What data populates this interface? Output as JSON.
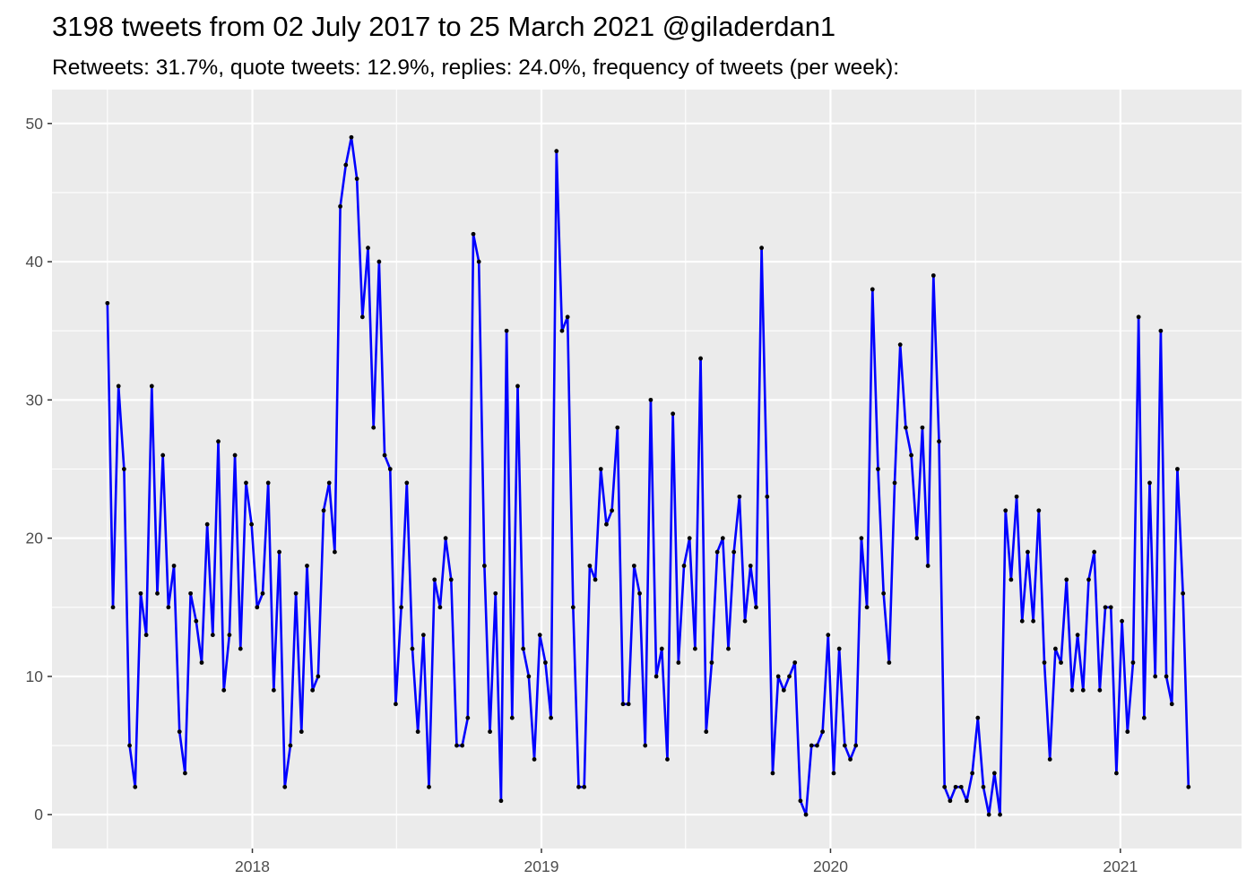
{
  "chart_data": {
    "type": "line",
    "title": "3198 tweets from 02 July 2017 to 25 March 2021 @giladerdan1",
    "subtitle": "Retweets: 31.7%, quote tweets: 12.9%, replies: 24.0%, frequency of tweets (per week):",
    "xlabel": "",
    "ylabel": "",
    "x_axis": {
      "type": "date",
      "interval": "week",
      "from": "2017-07-02",
      "to": "2021-03-25",
      "xlim": [
        "2017-04-23",
        "2021-06-03"
      ]
    },
    "x_ticks": [
      {
        "date": "2018-01-01",
        "label": "2018"
      },
      {
        "date": "2019-01-01",
        "label": "2019"
      },
      {
        "date": "2020-01-01",
        "label": "2020"
      },
      {
        "date": "2021-01-01",
        "label": "2021"
      }
    ],
    "y_ticks": [
      {
        "value": 0,
        "label": "0"
      },
      {
        "value": 10,
        "label": "10"
      },
      {
        "value": 20,
        "label": "20"
      },
      {
        "value": 30,
        "label": "30"
      },
      {
        "value": 40,
        "label": "40"
      },
      {
        "value": 50,
        "label": "50"
      }
    ],
    "ylim": [
      -2.45,
      52.45
    ],
    "grid": true,
    "colors": {
      "line": "#0000ff",
      "points": "#000000",
      "panel": "#ebebeb",
      "grid": "#ffffff"
    },
    "values": [
      37,
      15,
      31,
      25,
      5,
      2,
      16,
      13,
      31,
      16,
      26,
      15,
      18,
      6,
      3,
      16,
      14,
      11,
      21,
      13,
      27,
      9,
      13,
      26,
      12,
      24,
      21,
      15,
      16,
      24,
      9,
      19,
      2,
      5,
      16,
      6,
      18,
      9,
      10,
      22,
      24,
      19,
      44,
      47,
      49,
      46,
      36,
      41,
      28,
      40,
      26,
      25,
      8,
      15,
      24,
      12,
      6,
      13,
      2,
      17,
      15,
      20,
      17,
      5,
      5,
      7,
      42,
      40,
      18,
      6,
      16,
      1,
      35,
      7,
      31,
      12,
      10,
      4,
      13,
      11,
      7,
      48,
      35,
      36,
      15,
      2,
      2,
      18,
      17,
      25,
      21,
      22,
      28,
      8,
      8,
      18,
      16,
      5,
      30,
      10,
      12,
      4,
      29,
      11,
      18,
      20,
      12,
      33,
      6,
      11,
      19,
      20,
      12,
      19,
      23,
      14,
      18,
      15,
      41,
      23,
      3,
      10,
      9,
      10,
      11,
      1,
      0,
      5,
      5,
      6,
      13,
      3,
      12,
      5,
      4,
      5,
      20,
      15,
      38,
      25,
      16,
      11,
      24,
      34,
      28,
      26,
      20,
      28,
      18,
      39,
      27,
      2,
      1,
      2,
      2,
      1,
      3,
      7,
      2,
      0,
      3,
      0,
      22,
      17,
      23,
      14,
      19,
      14,
      22,
      11,
      4,
      12,
      11,
      17,
      9,
      13,
      9,
      17,
      19,
      9,
      15,
      15,
      3,
      14,
      6,
      11,
      36,
      7,
      24,
      10,
      35,
      10,
      8,
      25,
      16,
      2
    ]
  }
}
